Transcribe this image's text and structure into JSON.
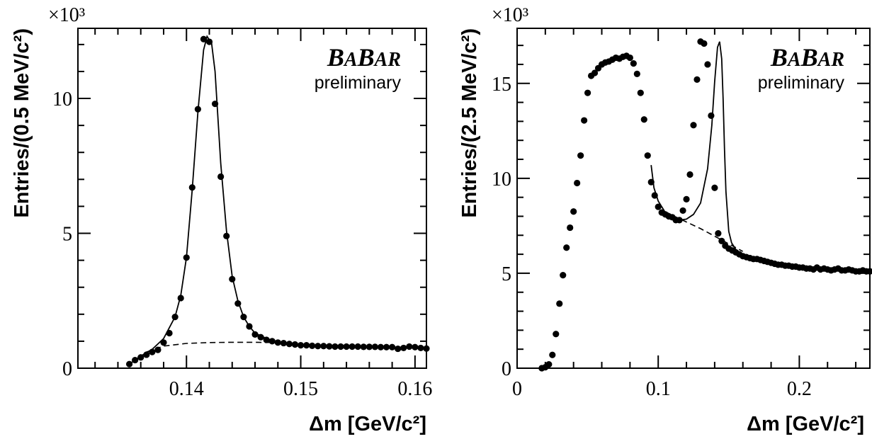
{
  "chart_data": [
    {
      "type": "scatter",
      "xlabel": "Δm [GeV/c²]",
      "ylabel": "Entries/(0.5 MeV/c²)",
      "y_multiplier": "×10³",
      "logo": {
        "main": [
          "B",
          "A",
          "B",
          "AR"
        ],
        "subtitle": "preliminary"
      },
      "xlim": [
        0.1305,
        0.161
      ],
      "ylim": [
        0,
        12.6
      ],
      "x_ticks": [
        0.14,
        0.15,
        0.16
      ],
      "x_tick_labels": [
        "0.14",
        "0.15",
        "0.16"
      ],
      "y_ticks": [
        0,
        5,
        10
      ],
      "y_tick_labels": [
        "0",
        "5",
        "10"
      ],
      "series": [
        {
          "kind": "points",
          "x": [
            0.135,
            0.1355,
            0.136,
            0.1365,
            0.137,
            0.1375,
            0.138,
            0.1385,
            0.139,
            0.1395,
            0.14,
            0.1405,
            0.141,
            0.1415,
            0.142,
            0.1425,
            0.143,
            0.1435,
            0.144,
            0.1445,
            0.145,
            0.1455,
            0.146,
            0.1465,
            0.147,
            0.1475,
            0.148,
            0.1485,
            0.149,
            0.1495,
            0.15,
            0.1505,
            0.151,
            0.1515,
            0.152,
            0.1525,
            0.153,
            0.1535,
            0.154,
            0.1545,
            0.155,
            0.1555,
            0.156,
            0.1565,
            0.157,
            0.1575,
            0.158,
            0.1585,
            0.159,
            0.1595,
            0.16,
            0.1605,
            0.161
          ],
          "y": [
            0.15,
            0.3,
            0.4,
            0.5,
            0.6,
            0.68,
            0.95,
            1.3,
            1.9,
            2.6,
            4.1,
            6.7,
            9.6,
            12.2,
            12.1,
            9.8,
            7.1,
            4.9,
            3.3,
            2.4,
            1.9,
            1.55,
            1.25,
            1.15,
            1.05,
            1.0,
            0.95,
            0.93,
            0.9,
            0.88,
            0.85,
            0.85,
            0.83,
            0.82,
            0.82,
            0.81,
            0.8,
            0.8,
            0.8,
            0.8,
            0.8,
            0.79,
            0.79,
            0.79,
            0.78,
            0.78,
            0.78,
            0.72,
            0.75,
            0.8,
            0.78,
            0.75,
            0.73
          ]
        },
        {
          "kind": "solid-line",
          "x": [
            0.135,
            0.136,
            0.137,
            0.138,
            0.139,
            0.1395,
            0.14,
            0.1405,
            0.141,
            0.1415,
            0.1418,
            0.1422,
            0.1425,
            0.143,
            0.1435,
            0.144,
            0.1445,
            0.145,
            0.1455,
            0.146,
            0.147,
            0.148,
            0.149,
            0.15,
            0.152,
            0.154,
            0.156,
            0.158,
            0.16,
            0.161
          ],
          "y": [
            0.15,
            0.45,
            0.7,
            1.1,
            1.9,
            2.7,
            4.1,
            6.6,
            9.5,
            11.8,
            12.3,
            12.05,
            11.0,
            7.6,
            5.1,
            3.4,
            2.5,
            1.9,
            1.55,
            1.3,
            1.1,
            0.98,
            0.92,
            0.88,
            0.84,
            0.81,
            0.8,
            0.78,
            0.77,
            0.76
          ]
        },
        {
          "kind": "dashed-line",
          "x": [
            0.1365,
            0.138,
            0.14,
            0.142,
            0.144,
            0.146,
            0.148
          ],
          "y": [
            0.6,
            0.82,
            0.92,
            0.95,
            0.96,
            0.96,
            0.95
          ]
        }
      ]
    },
    {
      "type": "scatter",
      "xlabel": "Δm [GeV/c²]",
      "ylabel": "Entries/(2.5 MeV/c²)",
      "y_multiplier": "×10³",
      "logo": {
        "main": [
          "B",
          "A",
          "B",
          "AR"
        ],
        "subtitle": "preliminary"
      },
      "xlim": [
        0,
        0.25
      ],
      "ylim": [
        0,
        17.9
      ],
      "x_ticks": [
        0,
        0.1,
        0.2
      ],
      "x_tick_labels": [
        "0",
        "0.1",
        "0.2"
      ],
      "y_ticks": [
        0,
        5,
        10,
        15
      ],
      "y_tick_labels": [
        "0",
        "5",
        "10",
        "15"
      ],
      "series": [
        {
          "kind": "points",
          "x": [
            0.0175,
            0.02,
            0.0225,
            0.025,
            0.0275,
            0.03,
            0.0325,
            0.035,
            0.0375,
            0.04,
            0.0425,
            0.045,
            0.0475,
            0.05,
            0.0525,
            0.055,
            0.0575,
            0.06,
            0.0625,
            0.065,
            0.0675,
            0.07,
            0.0725,
            0.075,
            0.0775,
            0.08,
            0.0825,
            0.085,
            0.0875,
            0.09,
            0.0925,
            0.095,
            0.0975,
            0.1,
            0.1025,
            0.105,
            0.1075,
            0.11,
            0.1125,
            0.115,
            0.1175,
            0.12,
            0.1225,
            0.125,
            0.1275,
            0.13,
            0.1325,
            0.135,
            0.1375,
            0.14,
            0.1425,
            0.145,
            0.1475,
            0.15,
            0.1525,
            0.155,
            0.1575,
            0.16,
            0.1625,
            0.165,
            0.1675,
            0.17,
            0.1725,
            0.175,
            0.1775,
            0.18,
            0.1825,
            0.185,
            0.1875,
            0.19,
            0.1925,
            0.195,
            0.1975,
            0.2,
            0.2025,
            0.205,
            0.2075,
            0.21,
            0.2125,
            0.215,
            0.2175,
            0.22,
            0.2225,
            0.225,
            0.2275,
            0.23,
            0.2325,
            0.235,
            0.2375,
            0.24,
            0.2425,
            0.245,
            0.2475,
            0.25
          ],
          "y": [
            0.0,
            0.05,
            0.2,
            0.7,
            1.8,
            3.4,
            4.9,
            6.35,
            7.4,
            8.25,
            9.75,
            11.2,
            13.05,
            14.5,
            15.4,
            15.55,
            15.8,
            16.0,
            16.1,
            16.15,
            16.25,
            16.35,
            16.3,
            16.4,
            16.45,
            16.35,
            16.05,
            15.5,
            14.5,
            13.1,
            11.2,
            9.8,
            9.1,
            8.5,
            8.2,
            8.1,
            8.0,
            7.95,
            7.8,
            7.8,
            8.3,
            8.9,
            10.2,
            12.8,
            15.2,
            17.2,
            17.1,
            16.0,
            13.3,
            9.5,
            7.1,
            6.7,
            6.45,
            6.3,
            6.2,
            6.1,
            6.0,
            5.9,
            5.85,
            5.8,
            5.75,
            5.75,
            5.7,
            5.65,
            5.6,
            5.55,
            5.5,
            5.45,
            5.45,
            5.4,
            5.4,
            5.35,
            5.35,
            5.3,
            5.3,
            5.25,
            5.25,
            5.2,
            5.3,
            5.2,
            5.25,
            5.2,
            5.15,
            5.2,
            5.25,
            5.15,
            5.15,
            5.2,
            5.15,
            5.1,
            5.1,
            5.15,
            5.1,
            5.1
          ]
        },
        {
          "kind": "solid-line",
          "x": [
            0.095,
            0.097,
            0.1,
            0.105,
            0.11,
            0.115,
            0.12,
            0.125,
            0.13,
            0.135,
            0.138,
            0.14,
            0.142,
            0.1435,
            0.145,
            0.146,
            0.147,
            0.148,
            0.15,
            0.152,
            0.155,
            0.16,
            0.165,
            0.17,
            0.18,
            0.19,
            0.2,
            0.21,
            0.22,
            0.23,
            0.24,
            0.25
          ],
          "y": [
            10.7,
            9.5,
            8.8,
            8.2,
            7.95,
            7.8,
            7.85,
            8.1,
            8.7,
            10.5,
            12.8,
            15.1,
            16.9,
            17.2,
            16.3,
            14.2,
            11.5,
            9.3,
            7.2,
            6.6,
            6.25,
            5.95,
            5.8,
            5.7,
            5.55,
            5.45,
            5.38,
            5.32,
            5.26,
            5.2,
            5.16,
            5.12
          ]
        },
        {
          "kind": "dashed-line",
          "x": [
            0.105,
            0.11,
            0.12,
            0.13,
            0.14,
            0.15,
            0.155,
            0.16
          ],
          "y": [
            8.25,
            8.05,
            7.7,
            7.35,
            6.95,
            6.55,
            6.35,
            6.15
          ]
        }
      ]
    }
  ]
}
